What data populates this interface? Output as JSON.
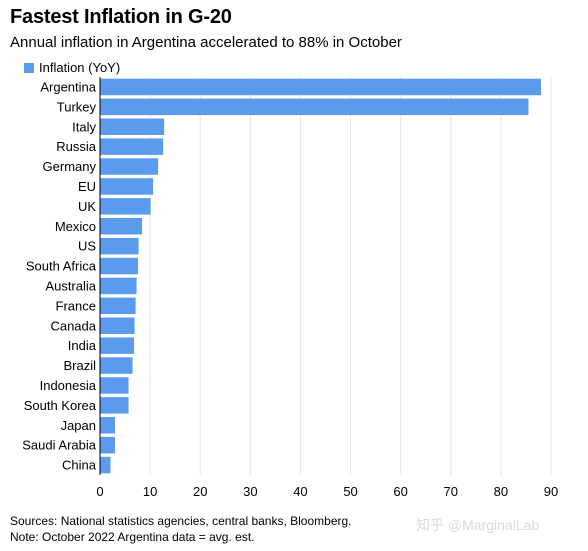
{
  "header": {
    "title": "Fastest Inflation in G-20",
    "subtitle": "Annual inflation in Argentina accelerated to 88% in October"
  },
  "legend": {
    "label": "Inflation (YoY)"
  },
  "colors": {
    "bar": "#5b9bee",
    "gridline": "#e6e6e6",
    "axis": "#000000"
  },
  "chart_data": {
    "type": "bar",
    "orientation": "horizontal",
    "categories": [
      "Argentina",
      "Turkey",
      "Italy",
      "Russia",
      "Germany",
      "EU",
      "UK",
      "Mexico",
      "US",
      "South Africa",
      "Australia",
      "France",
      "Canada",
      "India",
      "Brazil",
      "Indonesia",
      "South Korea",
      "Japan",
      "Saudi Arabia",
      "China"
    ],
    "series": [
      {
        "name": "Inflation (YoY)",
        "values": [
          88.0,
          85.5,
          12.8,
          12.6,
          11.6,
          10.6,
          10.1,
          8.4,
          7.7,
          7.6,
          7.3,
          7.1,
          6.9,
          6.8,
          6.5,
          5.7,
          5.7,
          3.0,
          3.0,
          2.1
        ]
      }
    ],
    "xlim": [
      0,
      90
    ],
    "xticks": [
      0,
      10,
      20,
      30,
      40,
      50,
      60,
      70,
      80,
      90
    ],
    "grid": true,
    "legend_position": "top-left"
  },
  "footnotes": {
    "sources": "Sources: National statistics agencies, central banks, Bloomberg.",
    "note": "Note: October 2022 Argentina data = avg. est."
  },
  "watermark": "知乎 @MarginalLab"
}
